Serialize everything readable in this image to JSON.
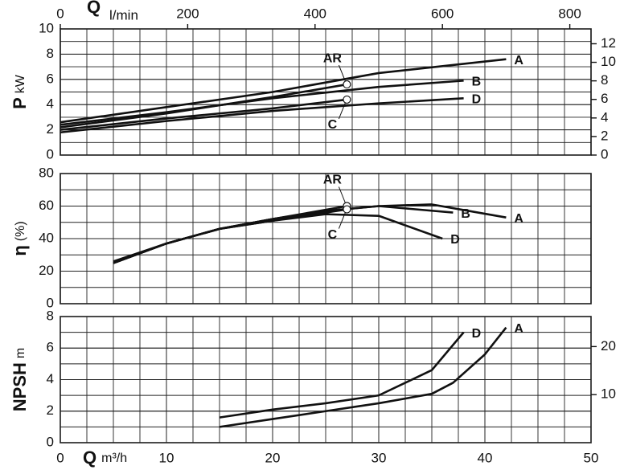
{
  "chart_data": [
    {
      "type": "line",
      "y_label": "P",
      "y_unit": "kW",
      "x2_label": "Q",
      "x2_unit": "l/min",
      "x2lim": [
        0,
        833.33
      ],
      "x2ticks": [
        0,
        200,
        400,
        600,
        800
      ],
      "xlim": [
        0,
        50
      ],
      "ylim": [
        0,
        10
      ],
      "yticks": [
        0,
        2,
        4,
        6,
        8,
        10
      ],
      "y2lim": [
        0,
        13.6
      ],
      "y2ticks": [
        0,
        2,
        4,
        6,
        8,
        10,
        12
      ],
      "grid": true,
      "series": [
        {
          "name": "A",
          "color": "#111111",
          "x": [
            0,
            10,
            20,
            30,
            42
          ],
          "values": [
            2.6,
            3.8,
            5.0,
            6.5,
            7.6
          ]
        },
        {
          "name": "B",
          "color": "#111111",
          "x": [
            0,
            10,
            20,
            30,
            38
          ],
          "values": [
            2.4,
            3.4,
            4.5,
            5.4,
            5.9
          ]
        },
        {
          "name": "AR",
          "color": "#111111",
          "x": [
            0,
            10,
            20,
            27
          ],
          "values": [
            2.2,
            3.3,
            4.6,
            5.6
          ],
          "end_marker": "circle"
        },
        {
          "name": "C",
          "color": "#111111",
          "x": [
            0,
            10,
            20,
            27
          ],
          "values": [
            2.0,
            2.9,
            3.7,
            4.4
          ],
          "end_marker": "circle"
        },
        {
          "name": "D",
          "color": "#111111",
          "x": [
            0,
            10,
            20,
            30,
            38
          ],
          "values": [
            1.8,
            2.7,
            3.5,
            4.1,
            4.5
          ]
        }
      ]
    },
    {
      "type": "line",
      "y_label": "η",
      "y_unit": "(%)",
      "xlim": [
        0,
        50
      ],
      "ylim": [
        0,
        80
      ],
      "yticks": [
        0,
        20,
        40,
        60,
        80
      ],
      "grid": true,
      "series": [
        {
          "name": "A",
          "color": "#111111",
          "x": [
            5,
            10,
            15,
            20,
            25,
            30,
            35,
            42
          ],
          "values": [
            25,
            37,
            46,
            52,
            57,
            60,
            61,
            53
          ]
        },
        {
          "name": "B",
          "color": "#111111",
          "x": [
            5,
            10,
            15,
            20,
            25,
            30,
            37
          ],
          "values": [
            25,
            37,
            46,
            52,
            57,
            60,
            56
          ]
        },
        {
          "name": "AR",
          "color": "#111111",
          "x": [
            5,
            10,
            15,
            20,
            27
          ],
          "values": [
            25,
            37,
            46,
            52,
            60
          ],
          "end_marker": "circle"
        },
        {
          "name": "C",
          "color": "#111111",
          "x": [
            5,
            10,
            15,
            20,
            27
          ],
          "values": [
            26,
            37,
            46,
            51,
            58
          ],
          "end_marker": "circle"
        },
        {
          "name": "D",
          "color": "#111111",
          "x": [
            5,
            10,
            15,
            20,
            25,
            30,
            36
          ],
          "values": [
            25,
            37,
            46,
            51,
            55,
            54,
            40
          ]
        }
      ]
    },
    {
      "type": "line",
      "y_label": "NPSH",
      "y_unit": "m",
      "x_label": "Q",
      "x_unit": "m³/h",
      "xlim": [
        0,
        50
      ],
      "xticks": [
        0,
        10,
        20,
        30,
        40,
        50
      ],
      "ylim": [
        0,
        8
      ],
      "yticks": [
        0,
        2,
        4,
        6,
        8
      ],
      "y2lim": [
        0,
        26.25
      ],
      "y2ticks": [
        10,
        20
      ],
      "grid": true,
      "series": [
        {
          "name": "D",
          "color": "#111111",
          "x": [
            15,
            20,
            25,
            30,
            35,
            38
          ],
          "values": [
            1.6,
            2.1,
            2.5,
            3.0,
            4.6,
            7.0
          ]
        },
        {
          "name": "A",
          "color": "#111111",
          "x": [
            15,
            20,
            25,
            30,
            35,
            37,
            40,
            42
          ],
          "values": [
            1.0,
            1.5,
            2.0,
            2.5,
            3.1,
            3.8,
            5.6,
            7.3
          ]
        }
      ]
    }
  ]
}
